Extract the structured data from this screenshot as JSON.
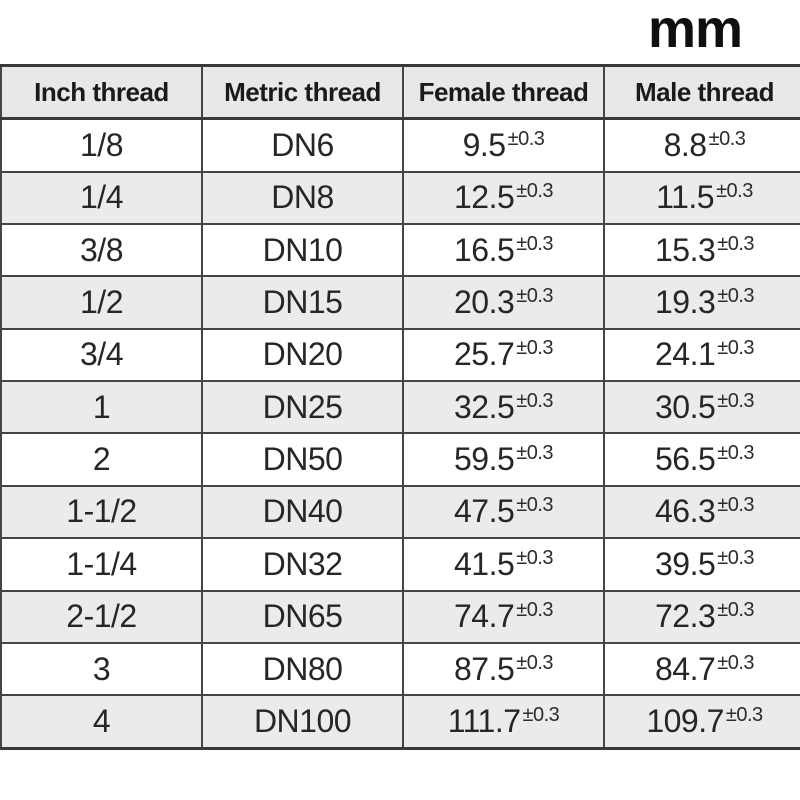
{
  "unit_label": "mm",
  "colors": {
    "header_bg": "#e8e8e8",
    "row_alt_bg": "#ebebeb",
    "border": "#454545",
    "text": "#262626"
  },
  "chart_data": {
    "type": "table",
    "unit": "mm",
    "tolerance": "±0.3",
    "columns": [
      "Inch thread",
      "Metric thread",
      "Female thread",
      "Male thread"
    ],
    "rows": [
      {
        "inch": "1/8",
        "metric": "DN6",
        "female": "9.5",
        "male": "8.8"
      },
      {
        "inch": "1/4",
        "metric": "DN8",
        "female": "12.5",
        "male": "11.5"
      },
      {
        "inch": "3/8",
        "metric": "DN10",
        "female": "16.5",
        "male": "15.3"
      },
      {
        "inch": "1/2",
        "metric": "DN15",
        "female": "20.3",
        "male": "19.3"
      },
      {
        "inch": "3/4",
        "metric": "DN20",
        "female": "25.7",
        "male": "24.1"
      },
      {
        "inch": "1",
        "metric": "DN25",
        "female": "32.5",
        "male": "30.5"
      },
      {
        "inch": "2",
        "metric": "DN50",
        "female": "59.5",
        "male": "56.5"
      },
      {
        "inch": "1-1/2",
        "metric": "DN40",
        "female": "47.5",
        "male": "46.3"
      },
      {
        "inch": "1-1/4",
        "metric": "DN32",
        "female": "41.5",
        "male": "39.5"
      },
      {
        "inch": "2-1/2",
        "metric": "DN65",
        "female": "74.7",
        "male": "72.3"
      },
      {
        "inch": "3",
        "metric": "DN80",
        "female": "87.5",
        "male": "84.7"
      },
      {
        "inch": "4",
        "metric": "DN100",
        "female": "111.7",
        "male": "109.7"
      }
    ]
  }
}
